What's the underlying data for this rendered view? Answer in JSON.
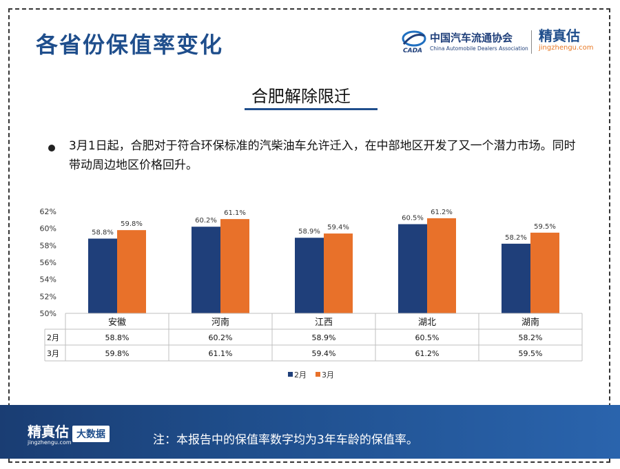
{
  "page": {
    "title": "各省份保值率变化",
    "subtitle": "合肥解除限迁",
    "bullet_text": "3月1日起，合肥对于符合环保标准的汽柴油车允许迁入，在中部地区开发了又一个潜力市场。同时带动周边地区价格回升。"
  },
  "logos": {
    "cada_cn": "中国汽车流通协会",
    "cada_en": "China Automobile Dealers Association",
    "cada_mark": "CADA",
    "jzg_cn": "精真估",
    "jzg_url": "jingzhengu.com"
  },
  "footer": {
    "logo_cn": "精真估",
    "logo_url": "jingzhengu.com",
    "badge": "大数据",
    "note": "注：本报告中的保值率数字均为3年车龄的保值率。"
  },
  "colors": {
    "series1": "#1f3f7a",
    "series2": "#e8712a",
    "accent": "#1f4e8c"
  },
  "chart_data": {
    "type": "bar",
    "title": "",
    "xlabel": "",
    "ylabel": "",
    "categories": [
      "安徽",
      "河南",
      "江西",
      "湖北",
      "湖南"
    ],
    "series": [
      {
        "name": "2月",
        "values": [
          58.8,
          60.2,
          58.9,
          60.5,
          58.2
        ],
        "labels": [
          "58.8%",
          "60.2%",
          "58.9%",
          "60.5%",
          "58.2%"
        ]
      },
      {
        "name": "3月",
        "values": [
          59.8,
          61.1,
          59.4,
          61.2,
          59.5
        ],
        "labels": [
          "59.8%",
          "61.1%",
          "59.4%",
          "61.2%",
          "59.5%"
        ]
      }
    ],
    "ylim": [
      50,
      62
    ],
    "yticks": [
      50,
      52,
      54,
      56,
      58,
      60,
      62
    ],
    "ytick_labels": [
      "50%",
      "52%",
      "54%",
      "56%",
      "58%",
      "60%",
      "62%"
    ],
    "grid": false,
    "legend": "bottom-center",
    "data_table": true
  }
}
